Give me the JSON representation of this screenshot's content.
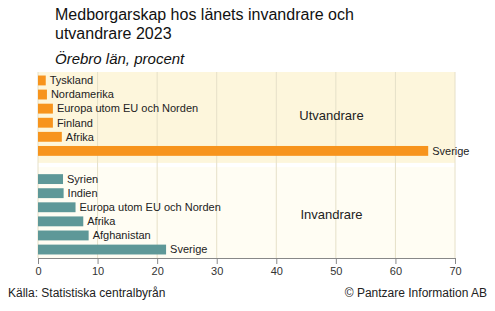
{
  "chart_data": {
    "type": "bar",
    "orientation": "horizontal",
    "title": "Medborgarskap hos länets invandrare och utvandrare 2023",
    "subtitle": "Örebro län, procent",
    "source": "Källa: Statistiska centralbyrån",
    "credit": "© Pantzare Information AB",
    "categories": [
      "Tyskland",
      "Nordamerika",
      "Europa utom EU och Norden",
      "Finland",
      "Afrika",
      "Sverige",
      null,
      "Syrien",
      "Indien",
      "Europa utom EU och Norden",
      "Afrika",
      "Afghanistan",
      "Sverige"
    ],
    "series": [
      {
        "name": "Utvandrare",
        "color": "#f7941d",
        "values": [
          1.3,
          1.5,
          2.5,
          2.5,
          4.0,
          65.5,
          null,
          null,
          null,
          null,
          null,
          null,
          null
        ]
      },
      {
        "name": "Invandrare",
        "color": "#5e9898",
        "values": [
          null,
          null,
          null,
          null,
          null,
          null,
          null,
          4.2,
          4.3,
          6.3,
          7.6,
          8.5,
          21.5
        ]
      }
    ],
    "xlim": [
      0,
      70
    ],
    "xticks": [
      0,
      10,
      20,
      30,
      40,
      50,
      60,
      70
    ],
    "grid": true,
    "tick_labels": "x"
  }
}
